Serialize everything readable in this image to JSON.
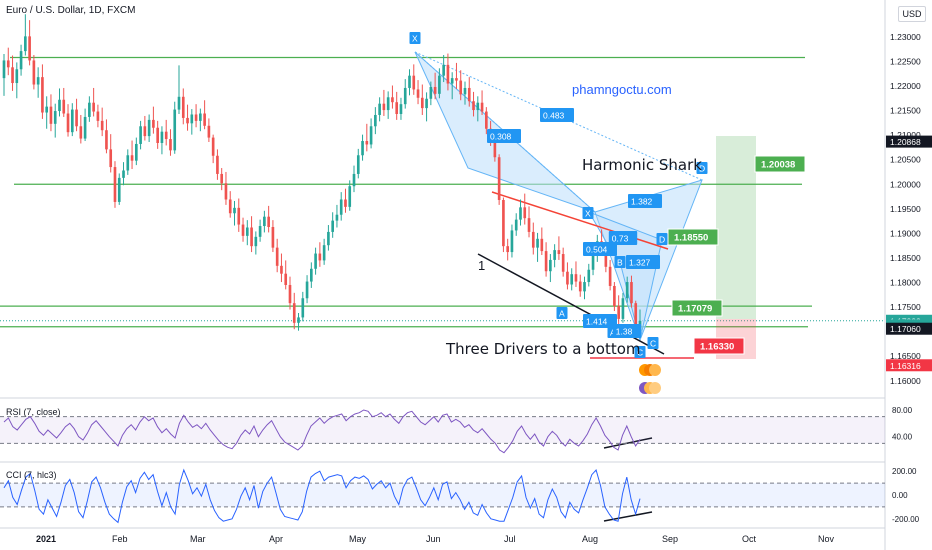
{
  "header": {
    "symbol_title": "Euro / U.S. Dollar, 1D, FXCM",
    "currency_badge": "USD"
  },
  "watermark": "phamngoctu.com",
  "annotations": {
    "harmonic_shark": "Harmonic Shark",
    "three_drivers": "Three Drivers to a bottom",
    "driver_1": "1"
  },
  "pattern_points": [
    "X",
    "X",
    "D",
    "D",
    "B",
    "A",
    "A",
    "C",
    "C"
  ],
  "ratio_labels": [
    "0.308",
    "0.483",
    "1.382",
    "0.73",
    "0.504",
    "1.327",
    "1.414",
    "1.38"
  ],
  "colors": {
    "up": "#26a69a",
    "down": "#ef5350",
    "level_line": "#4caf50",
    "pattern_fill": "#bbdefb",
    "pattern_label": "#2196f3",
    "target_green": "#4caf50",
    "stop_red": "#f23645",
    "rsi_line": "#7e57c2",
    "cci_line": "#2962ff"
  },
  "chart_data": {
    "type": "candlestick",
    "title": "Euro / U.S. Dollar, 1D, FXCM",
    "x_ticks": [
      "2021",
      "Feb",
      "Mar",
      "Apr",
      "May",
      "Jun",
      "Jul",
      "Aug",
      "Sep",
      "Oct",
      "Nov"
    ],
    "y_ticks": [
      "1.23000",
      "1.22500",
      "1.22000",
      "1.21500",
      "1.21000",
      "1.20500",
      "1.20000",
      "1.19500",
      "1.19000",
      "1.18500",
      "1.18000",
      "1.17500",
      "1.17000",
      "1.16500",
      "1.16000"
    ],
    "ylim": [
      1.1565,
      1.2375
    ],
    "price_labels": [
      {
        "text": "1.20868",
        "value": 1.20868,
        "color": "#131722"
      },
      {
        "text": "1.17222",
        "value": 1.17222,
        "color": "#26a69a"
      },
      {
        "text": "10:50:55",
        "value": 1.1713,
        "color": "#26a69a"
      },
      {
        "text": "1.17060",
        "value": 1.1706,
        "color": "#131722"
      },
      {
        "text": "1.16316",
        "value": 1.16316,
        "color": "#f23645"
      }
    ],
    "horizontal_levels": [
      1.2258,
      1.2,
      1.1752,
      1.171
    ],
    "target_labels": [
      {
        "text": "1.20038",
        "value": 1.20038,
        "kind": "target"
      },
      {
        "text": "1.18550",
        "value": 1.1855,
        "kind": "target"
      },
      {
        "text": "1.17079",
        "value": 1.17079,
        "kind": "target"
      },
      {
        "text": "1.16330",
        "value": 1.1633,
        "kind": "stop"
      }
    ],
    "candles": [
      [
        1.2216,
        1.2265,
        1.218,
        1.2252
      ],
      [
        1.2252,
        1.2278,
        1.2222,
        1.2238
      ],
      [
        1.2238,
        1.2262,
        1.219,
        1.2206
      ],
      [
        1.2206,
        1.2248,
        1.2175,
        1.2234
      ],
      [
        1.2234,
        1.2284,
        1.2221,
        1.2271
      ],
      [
        1.2271,
        1.2346,
        1.2262,
        1.2301
      ],
      [
        1.2301,
        1.2334,
        1.2242,
        1.2252
      ],
      [
        1.2252,
        1.2263,
        1.2193,
        1.2203
      ],
      [
        1.2203,
        1.2238,
        1.2176,
        1.2218
      ],
      [
        1.2218,
        1.2244,
        1.2133,
        1.2146
      ],
      [
        1.2146,
        1.2179,
        1.2113,
        1.2158
      ],
      [
        1.2158,
        1.2183,
        1.2108,
        1.2123
      ],
      [
        1.2123,
        1.2164,
        1.2095,
        1.2149
      ],
      [
        1.2149,
        1.2195,
        1.2138,
        1.2172
      ],
      [
        1.2172,
        1.2196,
        1.2137,
        1.2144
      ],
      [
        1.2144,
        1.2163,
        1.2097,
        1.2106
      ],
      [
        1.2106,
        1.2165,
        1.2098,
        1.2152
      ],
      [
        1.2152,
        1.2174,
        1.2108,
        1.2118
      ],
      [
        1.2118,
        1.2141,
        1.2083,
        1.2093
      ],
      [
        1.2093,
        1.2154,
        1.2088,
        1.2137
      ],
      [
        1.2137,
        1.2179,
        1.2127,
        1.2166
      ],
      [
        1.2166,
        1.2196,
        1.2138,
        1.2148
      ],
      [
        1.2148,
        1.2162,
        1.2116,
        1.2129
      ],
      [
        1.2129,
        1.2156,
        1.2098,
        1.211
      ],
      [
        1.211,
        1.2132,
        1.2063,
        1.2071
      ],
      [
        1.2071,
        1.2102,
        1.2024,
        1.2035
      ],
      [
        1.2035,
        1.2047,
        1.1952,
        1.1964
      ],
      [
        1.1964,
        1.2022,
        1.1958,
        1.2013
      ],
      [
        1.2013,
        1.2045,
        1.1998,
        1.2028
      ],
      [
        1.2028,
        1.2071,
        1.2019,
        1.2059
      ],
      [
        1.2059,
        1.2089,
        1.2031,
        1.2048
      ],
      [
        1.2048,
        1.2095,
        1.2039,
        1.2082
      ],
      [
        1.2082,
        1.2129,
        1.2071,
        1.2118
      ],
      [
        1.2118,
        1.2139,
        1.2089,
        1.2098
      ],
      [
        1.2098,
        1.2142,
        1.2086,
        1.2131
      ],
      [
        1.2131,
        1.2158,
        1.2103,
        1.2115
      ],
      [
        1.2115,
        1.2129,
        1.2072,
        1.2084
      ],
      [
        1.2084,
        1.2118,
        1.2061,
        1.2107
      ],
      [
        1.2107,
        1.2131,
        1.2079,
        1.2092
      ],
      [
        1.2092,
        1.2112,
        1.2058,
        1.2069
      ],
      [
        1.2069,
        1.2168,
        1.2062,
        1.2152
      ],
      [
        1.2152,
        1.2242,
        1.2143,
        1.2178
      ],
      [
        1.2178,
        1.2195,
        1.2122,
        1.2135
      ],
      [
        1.2135,
        1.2162,
        1.2109,
        1.2124
      ],
      [
        1.2124,
        1.2153,
        1.2101,
        1.2142
      ],
      [
        1.2142,
        1.2163,
        1.2116,
        1.2129
      ],
      [
        1.2129,
        1.2154,
        1.2108,
        1.2144
      ],
      [
        1.2144,
        1.2171,
        1.2112,
        1.2119
      ],
      [
        1.2119,
        1.2134,
        1.2086,
        1.2095
      ],
      [
        1.2095,
        1.2101,
        1.2043,
        1.2058
      ],
      [
        1.2058,
        1.2071,
        1.2009,
        1.2021
      ],
      [
        1.2021,
        1.2033,
        1.1988,
        1.2002
      ],
      [
        1.2002,
        1.2025,
        1.1958,
        1.1969
      ],
      [
        1.1969,
        1.1986,
        1.1932,
        1.1941
      ],
      [
        1.1941,
        1.1966,
        1.1916,
        1.1952
      ],
      [
        1.1952,
        1.1971,
        1.1903,
        1.1918
      ],
      [
        1.1918,
        1.1932,
        1.1883,
        1.1895
      ],
      [
        1.1895,
        1.1927,
        1.1876,
        1.1912
      ],
      [
        1.1912,
        1.1935,
        1.1862,
        1.1874
      ],
      [
        1.1874,
        1.1904,
        1.1857,
        1.1893
      ],
      [
        1.1893,
        1.1928,
        1.1883,
        1.1915
      ],
      [
        1.1915,
        1.1946,
        1.1902,
        1.1934
      ],
      [
        1.1934,
        1.1956,
        1.1902,
        1.1913
      ],
      [
        1.1913,
        1.1927,
        1.1862,
        1.1871
      ],
      [
        1.1871,
        1.1889,
        1.1821,
        1.1834
      ],
      [
        1.1834,
        1.1859,
        1.1801,
        1.1818
      ],
      [
        1.1818,
        1.1845,
        1.1786,
        1.1795
      ],
      [
        1.1795,
        1.1812,
        1.1745,
        1.1758
      ],
      [
        1.1758,
        1.1779,
        1.1705,
        1.1718
      ],
      [
        1.1718,
        1.1738,
        1.1702,
        1.1729
      ],
      [
        1.1729,
        1.1781,
        1.1721,
        1.1768
      ],
      [
        1.1768,
        1.1815,
        1.1758,
        1.1802
      ],
      [
        1.1802,
        1.1841,
        1.1789,
        1.1828
      ],
      [
        1.1828,
        1.1871,
        1.1816,
        1.1859
      ],
      [
        1.1859,
        1.1882,
        1.1832,
        1.1845
      ],
      [
        1.1845,
        1.1889,
        1.1836,
        1.1876
      ],
      [
        1.1876,
        1.1917,
        1.1865,
        1.1903
      ],
      [
        1.1903,
        1.1943,
        1.1891,
        1.1926
      ],
      [
        1.1926,
        1.1958,
        1.1912,
        1.1938
      ],
      [
        1.1938,
        1.1984,
        1.1926,
        1.1969
      ],
      [
        1.1969,
        1.1991,
        1.1942,
        1.1954
      ],
      [
        1.1954,
        1.2008,
        1.1946,
        1.1996
      ],
      [
        1.1996,
        1.2038,
        1.1984,
        1.2021
      ],
      [
        1.2021,
        1.2072,
        1.2012,
        1.2059
      ],
      [
        1.2059,
        1.2101,
        1.2048,
        1.2088
      ],
      [
        1.2088,
        1.2123,
        1.2067,
        1.2081
      ],
      [
        1.2081,
        1.2134,
        1.2073,
        1.2118
      ],
      [
        1.2118,
        1.2157,
        1.2102,
        1.2141
      ],
      [
        1.2141,
        1.2177,
        1.2128,
        1.2164
      ],
      [
        1.2164,
        1.2192,
        1.2139,
        1.2151
      ],
      [
        1.2151,
        1.2189,
        1.2133,
        1.2177
      ],
      [
        1.2177,
        1.2201,
        1.2154,
        1.2167
      ],
      [
        1.2167,
        1.2188,
        1.2131,
        1.2143
      ],
      [
        1.2143,
        1.2176,
        1.2131,
        1.2163
      ],
      [
        1.2163,
        1.2214,
        1.2154,
        1.2196
      ],
      [
        1.2196,
        1.2234,
        1.2181,
        1.2221
      ],
      [
        1.2221,
        1.2244,
        1.2182,
        1.2193
      ],
      [
        1.2193,
        1.2212,
        1.2163,
        1.2176
      ],
      [
        1.2176,
        1.2203,
        1.2141,
        1.2155
      ],
      [
        1.2155,
        1.2187,
        1.2128,
        1.2174
      ],
      [
        1.2174,
        1.2209,
        1.2161,
        1.2198
      ],
      [
        1.2198,
        1.2227,
        1.2173,
        1.2184
      ],
      [
        1.2184,
        1.2236,
        1.2175,
        1.2221
      ],
      [
        1.2221,
        1.2263,
        1.2208,
        1.2243
      ],
      [
        1.2243,
        1.2266,
        1.2191,
        1.2205
      ],
      [
        1.2205,
        1.2228,
        1.2173,
        1.2216
      ],
      [
        1.2216,
        1.2247,
        1.2194,
        1.2211
      ],
      [
        1.2211,
        1.2232,
        1.2171,
        1.2183
      ],
      [
        1.2183,
        1.2209,
        1.2162,
        1.2196
      ],
      [
        1.2196,
        1.2218,
        1.2158,
        1.2169
      ],
      [
        1.2169,
        1.2188,
        1.2138,
        1.2151
      ],
      [
        1.2151,
        1.2179,
        1.2128,
        1.2166
      ],
      [
        1.2166,
        1.2191,
        1.2141,
        1.2148
      ],
      [
        1.2148,
        1.2157,
        1.2102,
        1.2113
      ],
      [
        1.2113,
        1.2129,
        1.2078,
        1.2093
      ],
      [
        1.2093,
        1.2108,
        1.2046,
        1.2055
      ],
      [
        1.2055,
        1.2061,
        1.1958,
        1.1968
      ],
      [
        1.1968,
        1.1973,
        1.1862,
        1.1874
      ],
      [
        1.1874,
        1.1889,
        1.1845,
        1.1862
      ],
      [
        1.1862,
        1.1918,
        1.1851,
        1.1906
      ],
      [
        1.1906,
        1.1941,
        1.1895,
        1.1928
      ],
      [
        1.1928,
        1.1969,
        1.1916,
        1.1953
      ],
      [
        1.1953,
        1.1981,
        1.1918,
        1.1931
      ],
      [
        1.1931,
        1.1955,
        1.1892,
        1.1903
      ],
      [
        1.1903,
        1.1922,
        1.1857,
        1.1871
      ],
      [
        1.1871,
        1.1901,
        1.1842,
        1.1889
      ],
      [
        1.1889,
        1.1912,
        1.1856,
        1.1864
      ],
      [
        1.1864,
        1.1882,
        1.1812,
        1.1823
      ],
      [
        1.1823,
        1.1858,
        1.1801,
        1.1846
      ],
      [
        1.1846,
        1.1878,
        1.1831,
        1.1866
      ],
      [
        1.1866,
        1.1894,
        1.1846,
        1.1858
      ],
      [
        1.1858,
        1.1871,
        1.1812,
        1.1822
      ],
      [
        1.1822,
        1.1841,
        1.1786,
        1.1796
      ],
      [
        1.1796,
        1.1829,
        1.1784,
        1.1817
      ],
      [
        1.1817,
        1.1843,
        1.1791,
        1.1802
      ],
      [
        1.1802,
        1.1816,
        1.1771,
        1.1782
      ],
      [
        1.1782,
        1.1812,
        1.1766,
        1.1801
      ],
      [
        1.1801,
        1.1838,
        1.1792,
        1.1826
      ],
      [
        1.1826,
        1.1868,
        1.1815,
        1.1856
      ],
      [
        1.1856,
        1.1897,
        1.1842,
        1.1884
      ],
      [
        1.1884,
        1.1908,
        1.1857,
        1.1865
      ],
      [
        1.1865,
        1.1872,
        1.1821,
        1.1832
      ],
      [
        1.1832,
        1.1846,
        1.1784,
        1.1793
      ],
      [
        1.1793,
        1.1801,
        1.1742,
        1.1752
      ],
      [
        1.1752,
        1.1774,
        1.1711,
        1.1726
      ],
      [
        1.1726,
        1.1779,
        1.1718,
        1.1768
      ],
      [
        1.1768,
        1.1812,
        1.1759,
        1.1801
      ],
      [
        1.1801,
        1.1814,
        1.1749,
        1.1758
      ],
      [
        1.1758,
        1.1763,
        1.1691,
        1.1702
      ],
      [
        1.1702,
        1.1745,
        1.1694,
        1.1722
      ]
    ],
    "rsi": {
      "title": "RSI (7, close)",
      "y_ticks": [
        "80.00",
        "40.00"
      ],
      "levels": [
        70,
        30
      ],
      "ylim": [
        5,
        95
      ],
      "values": [
        62,
        68,
        55,
        50,
        58,
        66,
        70,
        60,
        48,
        42,
        50,
        44,
        38,
        46,
        55,
        60,
        52,
        40,
        35,
        45,
        58,
        64,
        56,
        48,
        40,
        33,
        26,
        42,
        52,
        58,
        50,
        62,
        70,
        64,
        68,
        55,
        46,
        52,
        44,
        38,
        60,
        72,
        62,
        54,
        58,
        52,
        60,
        50,
        42,
        34,
        28,
        24,
        22,
        30,
        42,
        50,
        44,
        56,
        40,
        50,
        58,
        64,
        52,
        40,
        32,
        28,
        24,
        20,
        26,
        42,
        56,
        62,
        68,
        60,
        66,
        70,
        72,
        74,
        64,
        70,
        74,
        76,
        80,
        78,
        70,
        72,
        76,
        70,
        74,
        66,
        60,
        70,
        76,
        78,
        70,
        62,
        58,
        64,
        70,
        62,
        72,
        74,
        62,
        66,
        62,
        54,
        58,
        50,
        46,
        52,
        44,
        36,
        30,
        20,
        16,
        24,
        34,
        48,
        56,
        44,
        36,
        44,
        32,
        26,
        40,
        48,
        42,
        32,
        26,
        36,
        30,
        26,
        34,
        44,
        58,
        68,
        56,
        42,
        34,
        24,
        20,
        42,
        56,
        40,
        26,
        36
      ]
    },
    "cci": {
      "title": "CCI (7, hlc3)",
      "y_ticks": [
        "200.00",
        "0.00",
        "-200.00"
      ],
      "levels": [
        100,
        -100
      ],
      "ylim": [
        -260,
        260
      ],
      "values": [
        60,
        120,
        -20,
        -80,
        40,
        150,
        180,
        40,
        -120,
        -160,
        -40,
        -110,
        -180,
        -60,
        80,
        130,
        20,
        -140,
        -190,
        -50,
        110,
        150,
        60,
        -60,
        -160,
        -200,
        -230,
        -60,
        70,
        120,
        20,
        140,
        190,
        130,
        170,
        30,
        -90,
        20,
        -100,
        -160,
        90,
        210,
        120,
        10,
        60,
        -10,
        90,
        -40,
        -130,
        -190,
        -220,
        -210,
        -200,
        -120,
        -10,
        60,
        -40,
        80,
        -110,
        30,
        100,
        150,
        20,
        -120,
        -180,
        -190,
        -200,
        -210,
        -140,
        30,
        150,
        180,
        200,
        120,
        150,
        160,
        170,
        160,
        60,
        120,
        150,
        140,
        160,
        130,
        50,
        90,
        120,
        60,
        100,
        -10,
        -80,
        60,
        130,
        150,
        60,
        -40,
        -90,
        -20,
        60,
        -40,
        90,
        110,
        -30,
        20,
        -40,
        -120,
        -60,
        -150,
        -170,
        -80,
        -150,
        -200,
        -210,
        -220,
        -220,
        -120,
        -20,
        110,
        160,
        -20,
        -110,
        -30,
        -160,
        -190,
        -40,
        50,
        -20,
        -140,
        -190,
        -60,
        -120,
        -150,
        -40,
        60,
        170,
        210,
        80,
        -100,
        -160,
        -210,
        -220,
        10,
        150,
        -40,
        -160,
        -30
      ]
    }
  }
}
